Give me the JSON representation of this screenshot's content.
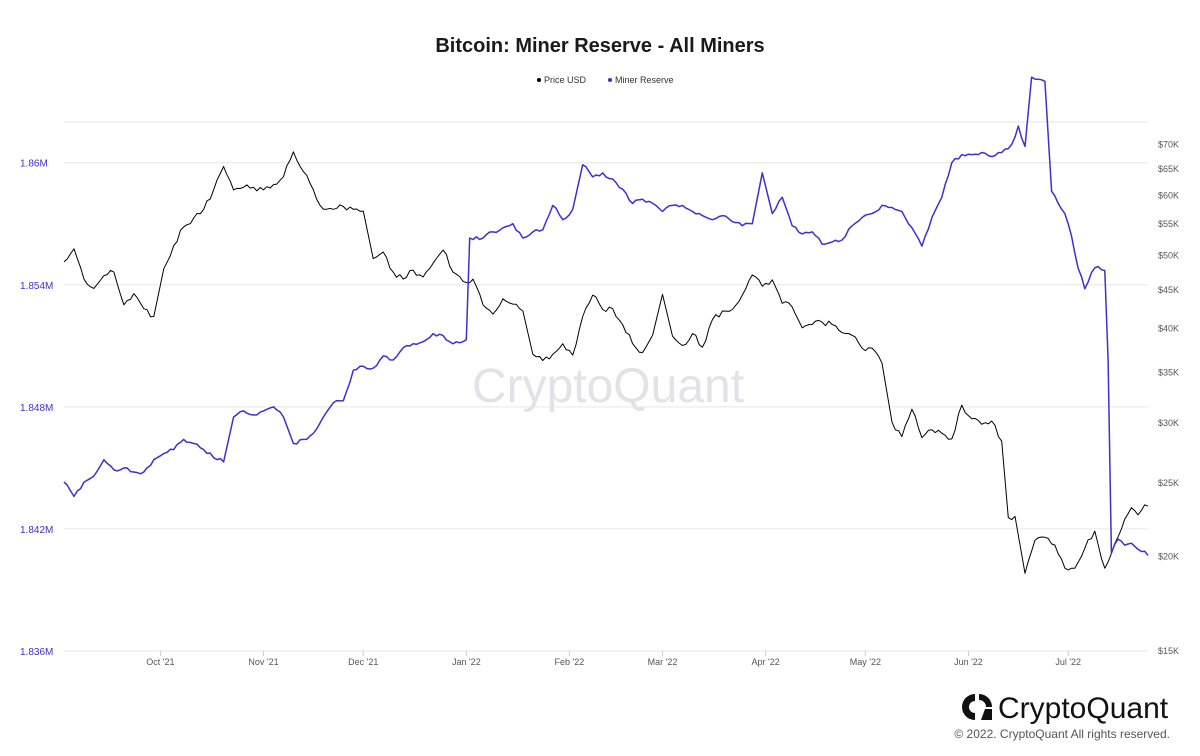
{
  "chart_data": {
    "type": "line",
    "title": "Bitcoin: Miner Reserve - All Miners",
    "legend_position": "top-center",
    "grid": true,
    "x_ticks": [
      "Oct '21",
      "Nov '21",
      "Dec '21",
      "Jan '22",
      "Feb '22",
      "Mar '22",
      "Apr '22",
      "May '22",
      "Jun '22",
      "Jul '22"
    ],
    "x_range": [
      "2021-09-02",
      "2022-07-25"
    ],
    "y_left": {
      "ticks": [
        "1.836M",
        "1.842M",
        "1.848M",
        "1.854M",
        "1.86M"
      ],
      "ylim": [
        1836000,
        1862000
      ],
      "color": "#3f2fd0"
    },
    "y_right": {
      "scale": "log",
      "ticks": [
        "$15K",
        "$20K",
        "$25K",
        "$30K",
        "$35K",
        "$40K",
        "$45K",
        "$50K",
        "$55K",
        "$60K",
        "$65K",
        "$70K"
      ],
      "tick_values": [
        15000,
        20000,
        25000,
        30000,
        35000,
        40000,
        45000,
        50000,
        55000,
        60000,
        65000,
        70000
      ],
      "ylim": [
        15000,
        75000
      ]
    },
    "series": [
      {
        "name": "Price USD",
        "axis": "right",
        "color": "#000000",
        "points": [
          [
            "2021-09-02",
            49000
          ],
          [
            "2021-09-05",
            51000
          ],
          [
            "2021-09-08",
            46500
          ],
          [
            "2021-09-11",
            45200
          ],
          [
            "2021-09-14",
            47000
          ],
          [
            "2021-09-17",
            47500
          ],
          [
            "2021-09-20",
            43000
          ],
          [
            "2021-09-23",
            44500
          ],
          [
            "2021-09-26",
            42500
          ],
          [
            "2021-09-29",
            41500
          ],
          [
            "2021-10-02",
            48000
          ],
          [
            "2021-10-05",
            51500
          ],
          [
            "2021-10-08",
            54500
          ],
          [
            "2021-10-11",
            56000
          ],
          [
            "2021-10-14",
            57500
          ],
          [
            "2021-10-17",
            61000
          ],
          [
            "2021-10-20",
            65500
          ],
          [
            "2021-10-23",
            61000
          ],
          [
            "2021-10-26",
            61500
          ],
          [
            "2021-10-29",
            61500
          ],
          [
            "2021-11-01",
            61000
          ],
          [
            "2021-11-04",
            62000
          ],
          [
            "2021-11-07",
            63500
          ],
          [
            "2021-11-10",
            68500
          ],
          [
            "2021-11-13",
            64500
          ],
          [
            "2021-11-16",
            61000
          ],
          [
            "2021-11-19",
            57500
          ],
          [
            "2021-11-22",
            57500
          ],
          [
            "2021-11-25",
            58000
          ],
          [
            "2021-11-28",
            57500
          ],
          [
            "2021-12-01",
            57200
          ],
          [
            "2021-12-04",
            49500
          ],
          [
            "2021-12-07",
            50500
          ],
          [
            "2021-12-10",
            47500
          ],
          [
            "2021-12-13",
            46500
          ],
          [
            "2021-12-16",
            47800
          ],
          [
            "2021-12-19",
            46800
          ],
          [
            "2021-12-22",
            48800
          ],
          [
            "2021-12-25",
            50800
          ],
          [
            "2021-12-28",
            47500
          ],
          [
            "2021-12-31",
            46200
          ],
          [
            "2022-01-03",
            46500
          ],
          [
            "2022-01-06",
            43000
          ],
          [
            "2022-01-09",
            41800
          ],
          [
            "2022-01-12",
            43800
          ],
          [
            "2022-01-15",
            43100
          ],
          [
            "2022-01-18",
            42200
          ],
          [
            "2022-01-21",
            37000
          ],
          [
            "2022-01-24",
            36300
          ],
          [
            "2022-01-27",
            37000
          ],
          [
            "2022-01-30",
            38200
          ],
          [
            "2022-02-02",
            36900
          ],
          [
            "2022-02-05",
            41500
          ],
          [
            "2022-02-08",
            44300
          ],
          [
            "2022-02-11",
            42400
          ],
          [
            "2022-02-14",
            42500
          ],
          [
            "2022-02-17",
            40500
          ],
          [
            "2022-02-20",
            38200
          ],
          [
            "2022-02-23",
            37200
          ],
          [
            "2022-02-26",
            39200
          ],
          [
            "2022-03-01",
            44400
          ],
          [
            "2022-03-04",
            39100
          ],
          [
            "2022-03-07",
            38000
          ],
          [
            "2022-03-10",
            39400
          ],
          [
            "2022-03-13",
            37800
          ],
          [
            "2022-03-16",
            41100
          ],
          [
            "2022-03-19",
            42200
          ],
          [
            "2022-03-22",
            42400
          ],
          [
            "2022-03-25",
            44300
          ],
          [
            "2022-03-28",
            47100
          ],
          [
            "2022-03-31",
            45500
          ],
          [
            "2022-04-03",
            46400
          ],
          [
            "2022-04-06",
            43200
          ],
          [
            "2022-04-09",
            42700
          ],
          [
            "2022-04-12",
            40100
          ],
          [
            "2022-04-15",
            40500
          ],
          [
            "2022-04-18",
            40800
          ],
          [
            "2022-04-21",
            40500
          ],
          [
            "2022-04-24",
            39500
          ],
          [
            "2022-04-27",
            39200
          ],
          [
            "2022-04-30",
            37700
          ],
          [
            "2022-05-03",
            37700
          ],
          [
            "2022-05-06",
            36000
          ],
          [
            "2022-05-09",
            30100
          ],
          [
            "2022-05-12",
            28800
          ],
          [
            "2022-05-15",
            31300
          ],
          [
            "2022-05-18",
            28700
          ],
          [
            "2022-05-21",
            29400
          ],
          [
            "2022-05-24",
            29100
          ],
          [
            "2022-05-27",
            28600
          ],
          [
            "2022-05-30",
            31700
          ],
          [
            "2022-06-02",
            30400
          ],
          [
            "2022-06-05",
            29900
          ],
          [
            "2022-06-08",
            30200
          ],
          [
            "2022-06-11",
            28400
          ],
          [
            "2022-06-13",
            22500
          ],
          [
            "2022-06-15",
            22600
          ],
          [
            "2022-06-18",
            19000
          ],
          [
            "2022-06-21",
            21000
          ],
          [
            "2022-06-24",
            21200
          ],
          [
            "2022-06-27",
            20700
          ],
          [
            "2022-06-30",
            19300
          ],
          [
            "2022-07-03",
            19300
          ],
          [
            "2022-07-06",
            20500
          ],
          [
            "2022-07-09",
            21600
          ],
          [
            "2022-07-12",
            19300
          ],
          [
            "2022-07-15",
            20800
          ],
          [
            "2022-07-18",
            22400
          ],
          [
            "2022-07-20",
            23200
          ],
          [
            "2022-07-22",
            22700
          ],
          [
            "2022-07-24",
            23400
          ],
          [
            "2022-07-25",
            23300
          ]
        ]
      },
      {
        "name": "Miner Reserve",
        "axis": "left",
        "color": "#3f2fd0",
        "points": [
          [
            "2021-09-02",
            1844300
          ],
          [
            "2021-09-05",
            1843600
          ],
          [
            "2021-09-08",
            1844300
          ],
          [
            "2021-09-11",
            1844600
          ],
          [
            "2021-09-14",
            1845400
          ],
          [
            "2021-09-17",
            1844900
          ],
          [
            "2021-09-20",
            1845000
          ],
          [
            "2021-09-23",
            1844800
          ],
          [
            "2021-09-26",
            1844800
          ],
          [
            "2021-09-29",
            1845400
          ],
          [
            "2021-10-02",
            1845700
          ],
          [
            "2021-10-05",
            1845900
          ],
          [
            "2021-10-08",
            1846400
          ],
          [
            "2021-10-11",
            1846200
          ],
          [
            "2021-10-14",
            1845900
          ],
          [
            "2021-10-17",
            1845500
          ],
          [
            "2021-10-20",
            1845300
          ],
          [
            "2021-10-23",
            1847500
          ],
          [
            "2021-10-26",
            1847800
          ],
          [
            "2021-10-29",
            1847600
          ],
          [
            "2021-11-01",
            1847800
          ],
          [
            "2021-11-04",
            1848000
          ],
          [
            "2021-11-07",
            1847500
          ],
          [
            "2021-11-10",
            1846200
          ],
          [
            "2021-11-13",
            1846400
          ],
          [
            "2021-11-16",
            1846700
          ],
          [
            "2021-11-19",
            1847500
          ],
          [
            "2021-11-22",
            1848200
          ],
          [
            "2021-11-25",
            1848300
          ],
          [
            "2021-11-28",
            1849800
          ],
          [
            "2021-12-01",
            1850000
          ],
          [
            "2021-12-04",
            1849900
          ],
          [
            "2021-12-07",
            1850500
          ],
          [
            "2021-12-10",
            1850300
          ],
          [
            "2021-12-13",
            1850900
          ],
          [
            "2021-12-16",
            1851100
          ],
          [
            "2021-12-19",
            1851200
          ],
          [
            "2021-12-22",
            1851600
          ],
          [
            "2021-12-25",
            1851500
          ],
          [
            "2021-12-28",
            1851100
          ],
          [
            "2021-12-31",
            1851200
          ],
          [
            "2022-01-01",
            1851300
          ],
          [
            "2022-01-02",
            1856300
          ],
          [
            "2022-01-06",
            1856300
          ],
          [
            "2022-01-09",
            1856600
          ],
          [
            "2022-01-12",
            1856800
          ],
          [
            "2022-01-15",
            1857000
          ],
          [
            "2022-01-18",
            1856300
          ],
          [
            "2022-01-21",
            1856600
          ],
          [
            "2022-01-24",
            1856700
          ],
          [
            "2022-01-27",
            1857900
          ],
          [
            "2022-01-30",
            1857200
          ],
          [
            "2022-02-02",
            1857700
          ],
          [
            "2022-02-05",
            1859900
          ],
          [
            "2022-02-08",
            1859300
          ],
          [
            "2022-02-11",
            1859500
          ],
          [
            "2022-02-14",
            1859200
          ],
          [
            "2022-02-17",
            1858700
          ],
          [
            "2022-02-20",
            1858000
          ],
          [
            "2022-02-23",
            1858200
          ],
          [
            "2022-02-26",
            1858000
          ],
          [
            "2022-03-01",
            1857600
          ],
          [
            "2022-03-04",
            1857900
          ],
          [
            "2022-03-07",
            1857900
          ],
          [
            "2022-03-10",
            1857600
          ],
          [
            "2022-03-13",
            1857400
          ],
          [
            "2022-03-16",
            1857200
          ],
          [
            "2022-03-19",
            1857400
          ],
          [
            "2022-03-22",
            1857100
          ],
          [
            "2022-03-25",
            1856900
          ],
          [
            "2022-03-28",
            1857000
          ],
          [
            "2022-03-31",
            1859500
          ],
          [
            "2022-04-03",
            1857500
          ],
          [
            "2022-04-06",
            1858300
          ],
          [
            "2022-04-09",
            1856900
          ],
          [
            "2022-04-12",
            1856500
          ],
          [
            "2022-04-15",
            1856600
          ],
          [
            "2022-04-18",
            1856000
          ],
          [
            "2022-04-21",
            1856100
          ],
          [
            "2022-04-24",
            1856200
          ],
          [
            "2022-04-27",
            1856900
          ],
          [
            "2022-04-30",
            1857300
          ],
          [
            "2022-05-03",
            1857500
          ],
          [
            "2022-05-06",
            1857900
          ],
          [
            "2022-05-09",
            1857800
          ],
          [
            "2022-05-12",
            1857600
          ],
          [
            "2022-05-15",
            1856800
          ],
          [
            "2022-05-18",
            1855900
          ],
          [
            "2022-05-21",
            1857300
          ],
          [
            "2022-05-24",
            1858300
          ],
          [
            "2022-05-27",
            1860000
          ],
          [
            "2022-05-30",
            1860400
          ],
          [
            "2022-06-02",
            1860400
          ],
          [
            "2022-06-05",
            1860500
          ],
          [
            "2022-06-08",
            1860300
          ],
          [
            "2022-06-11",
            1860500
          ],
          [
            "2022-06-14",
            1860900
          ],
          [
            "2022-06-16",
            1861800
          ],
          [
            "2022-06-18",
            1860800
          ],
          [
            "2022-06-20",
            1864200
          ],
          [
            "2022-06-22",
            1864100
          ],
          [
            "2022-06-24",
            1864000
          ],
          [
            "2022-06-26",
            1858600
          ],
          [
            "2022-06-28",
            1858000
          ],
          [
            "2022-06-30",
            1857500
          ],
          [
            "2022-07-02",
            1856400
          ],
          [
            "2022-07-04",
            1854800
          ],
          [
            "2022-07-06",
            1853800
          ],
          [
            "2022-07-08",
            1854600
          ],
          [
            "2022-07-10",
            1854900
          ],
          [
            "2022-07-12",
            1854700
          ],
          [
            "2022-07-13",
            1850300
          ],
          [
            "2022-07-14",
            1840800
          ],
          [
            "2022-07-16",
            1841500
          ],
          [
            "2022-07-18",
            1841200
          ],
          [
            "2022-07-20",
            1841300
          ],
          [
            "2022-07-22",
            1841000
          ],
          [
            "2022-07-24",
            1840900
          ],
          [
            "2022-07-25",
            1840700
          ]
        ]
      }
    ]
  },
  "watermark_text": "CryptoQuant",
  "footer": {
    "brand": "CryptoQuant",
    "copyright": "© 2022. CryptoQuant All rights reserved."
  },
  "colors": {
    "accent": "#3f2fd0",
    "price_line": "#000000",
    "grid": "#e6e6e6"
  },
  "icons": {
    "brand_logo": "cryptoquant-logo-icon"
  }
}
